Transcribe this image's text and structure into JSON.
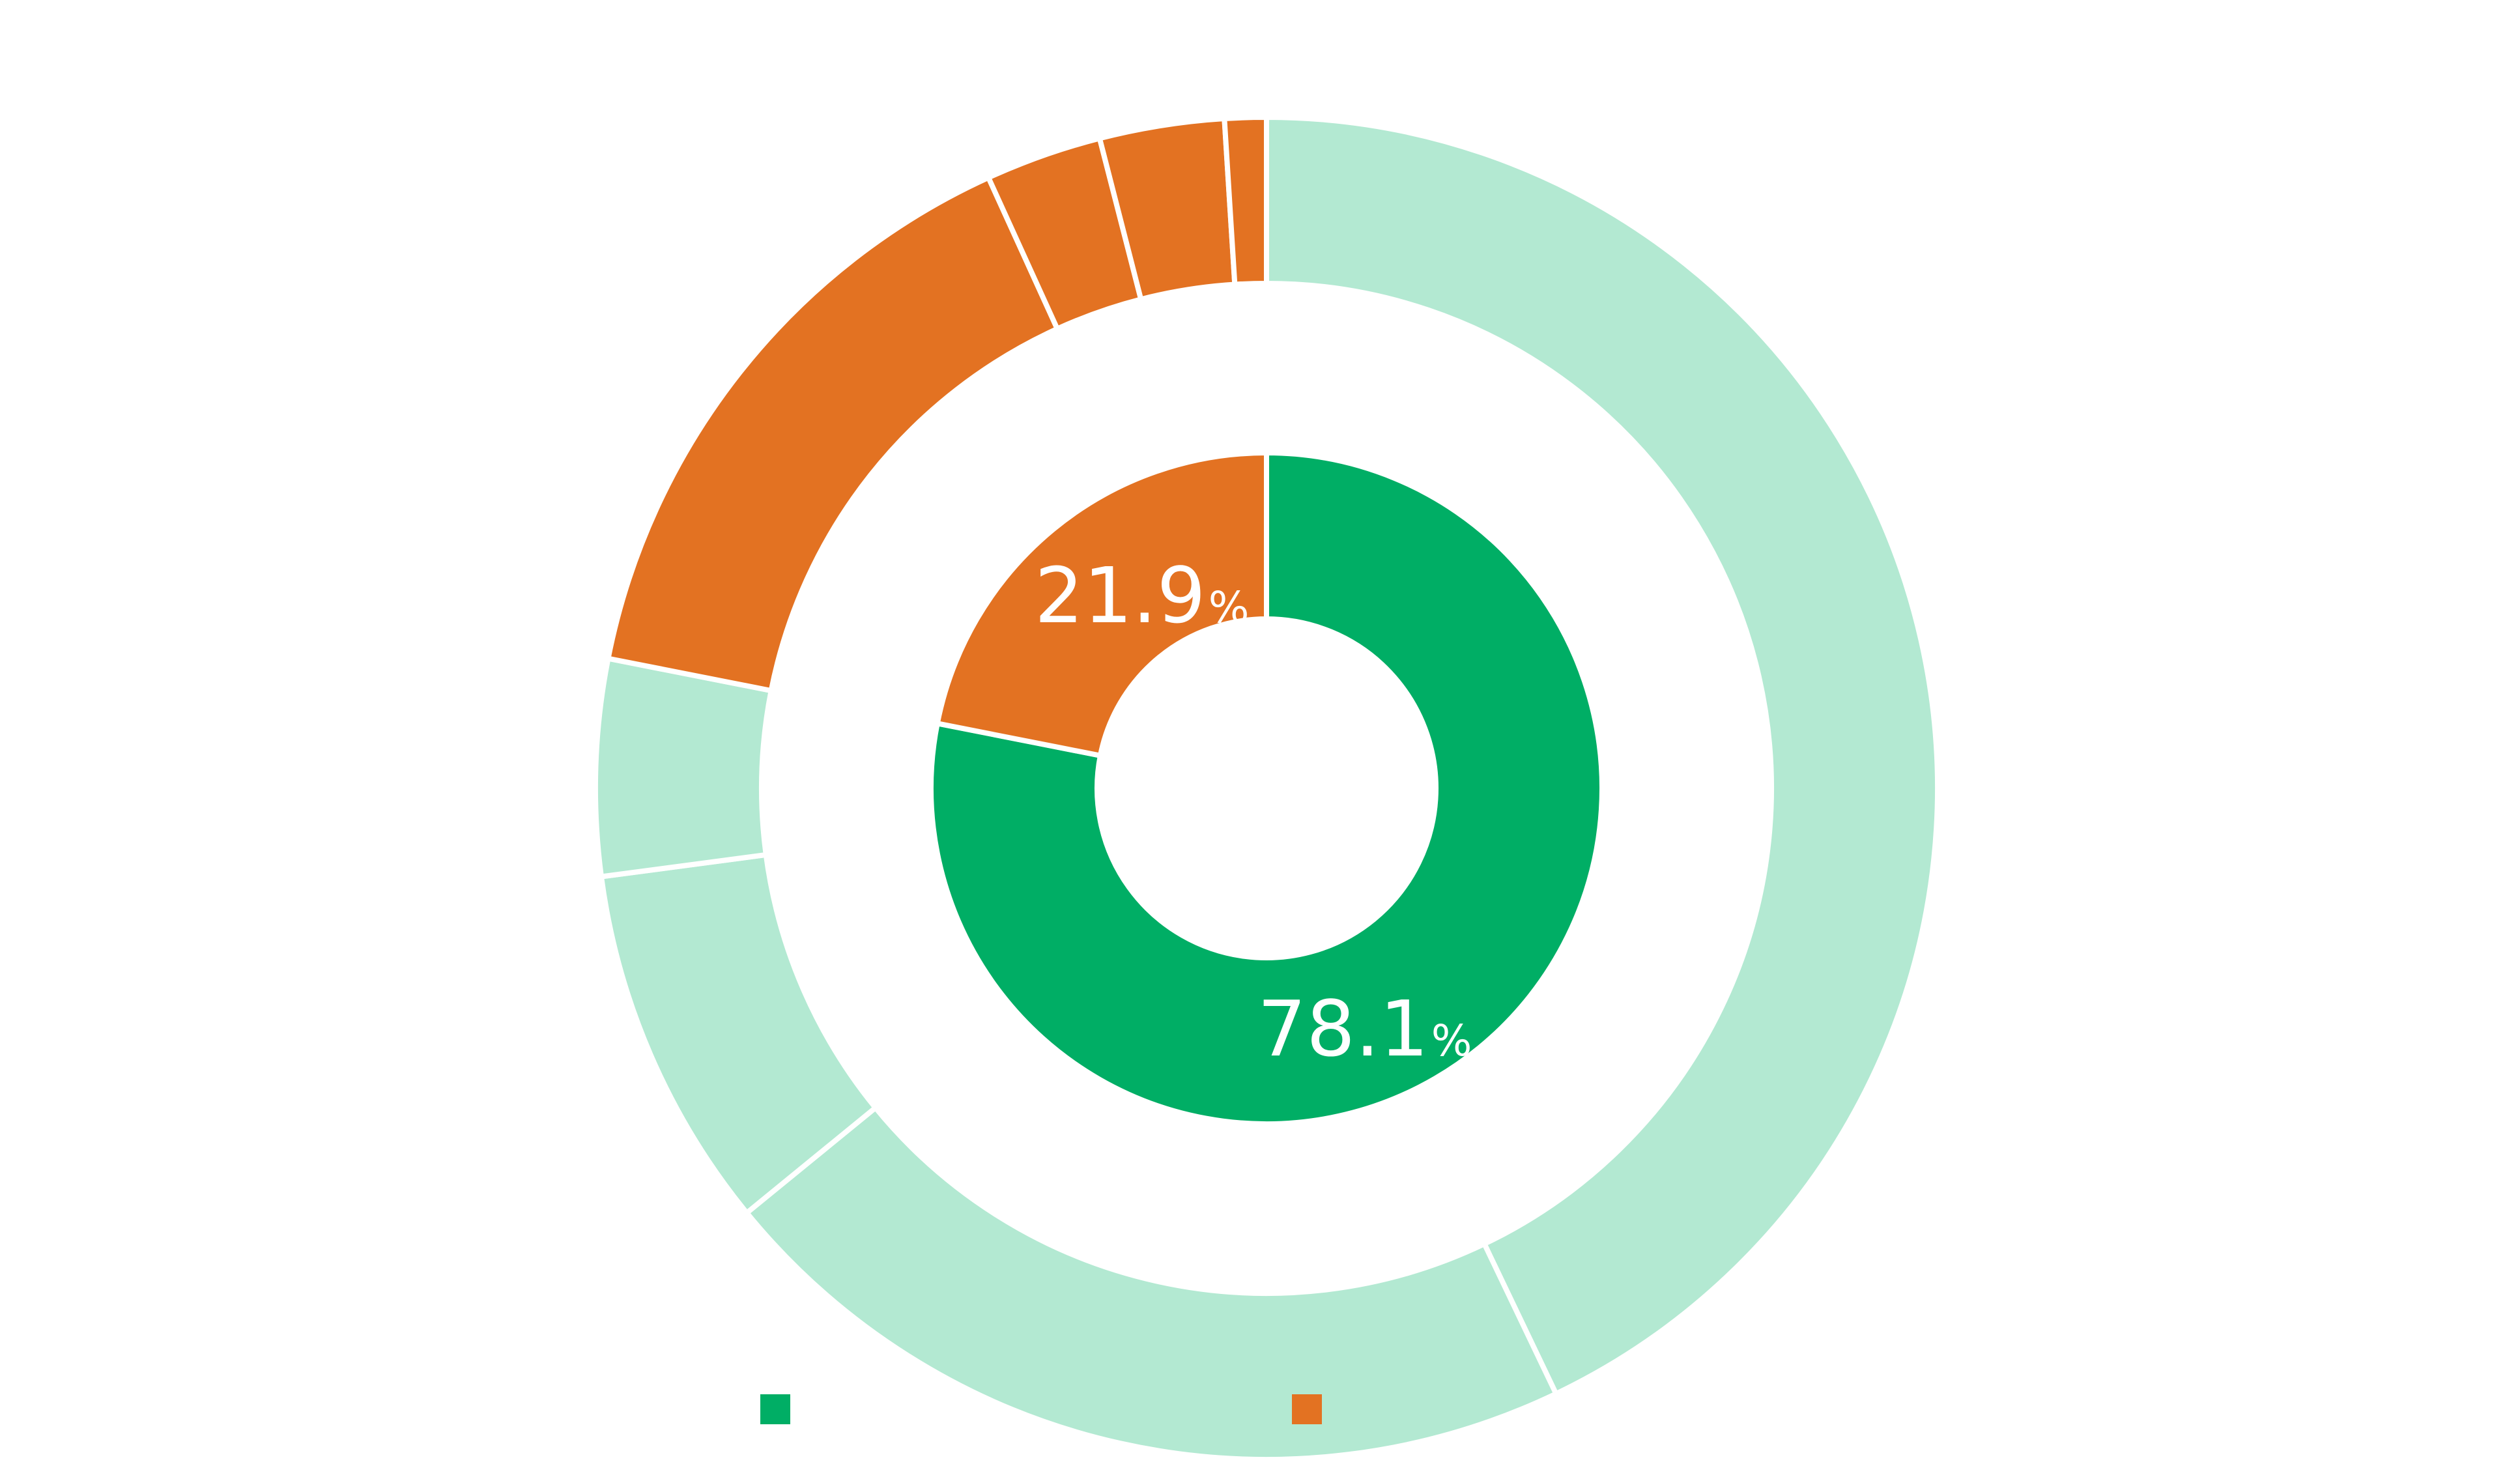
{
  "chart_data": {
    "type": "pie",
    "variant": "nested-donut",
    "colors": {
      "inner_a": "#00AE65",
      "inner_b": "#E37222",
      "outer_a": "#B3E9D2",
      "outer_b": "#E37222",
      "separator": "#ffffff"
    },
    "inner_ring": [
      {
        "name": "",
        "value": 78.1,
        "label_num": "78.1",
        "label_sign": "%"
      },
      {
        "name": "",
        "value": 21.9,
        "label_num": "21.9",
        "label_sign": "%"
      }
    ],
    "outer_ring": [
      {
        "group": 0,
        "value": 42.9
      },
      {
        "group": 0,
        "value": 21.2
      },
      {
        "group": 0,
        "value": 8.8
      },
      {
        "group": 0,
        "value": 5.2
      },
      {
        "group": 1,
        "value": 15.1
      },
      {
        "group": 1,
        "value": 2.8
      },
      {
        "group": 1,
        "value": 3.0
      },
      {
        "group": 1,
        "value": 1.0
      }
    ],
    "legend": [
      {
        "name": "",
        "color": "#00AE65"
      },
      {
        "name": "",
        "color": "#E37222"
      }
    ],
    "legend_position": "bottom"
  }
}
